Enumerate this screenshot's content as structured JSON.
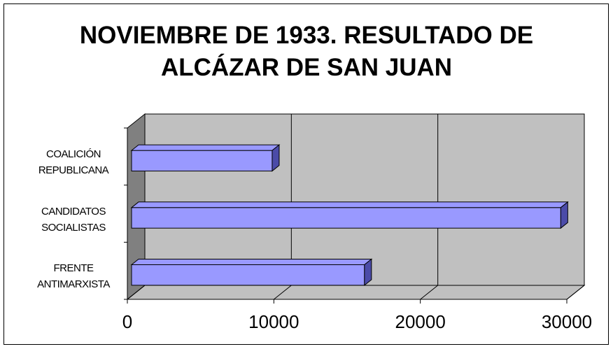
{
  "chart_data": {
    "type": "bar3d_horizontal",
    "title": "NOVIEMBRE DE 1933. RESULTADO DE ALCÁZAR DE SAN JUAN",
    "categories": [
      "COALICIÓN REPUBLICANA",
      "CANDIDATOS SOCIALISTAS",
      "FRENTE ANTIMARXISTA"
    ],
    "values": [
      9600,
      29300,
      15900
    ],
    "color": "#9999ff",
    "xlim": [
      0,
      30000
    ],
    "xticks": [
      0,
      10000,
      20000,
      30000
    ],
    "grid": true
  }
}
